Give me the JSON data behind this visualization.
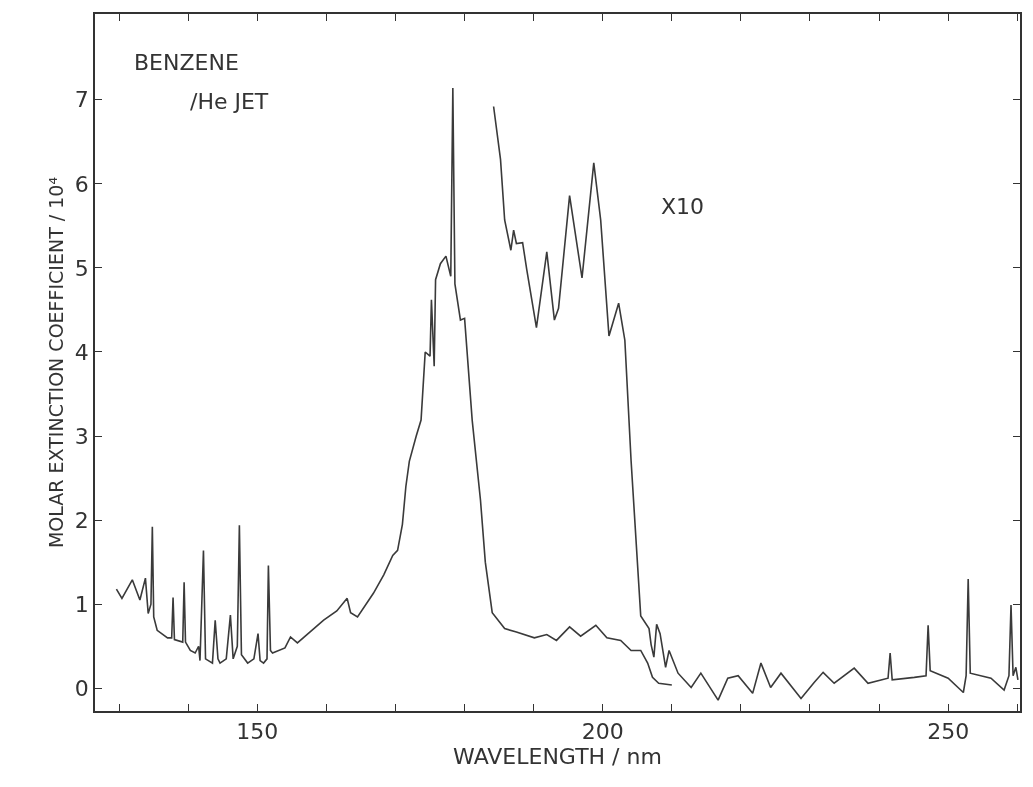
{
  "chart_data": {
    "type": "line",
    "xlabel": "WAVELENGTH / nm",
    "ylabel": "MOLAR EXTINCTION COEFFICIENT / 10⁴",
    "annotations": [
      "BENZENE",
      "/He JET"
    ],
    "xlim": [
      126.5,
      260.4
    ],
    "xticks": [
      {
        "value": 130,
        "label": null
      },
      {
        "value": 140,
        "label": null
      },
      150,
      {
        "value": 160,
        "label": null
      },
      {
        "value": 170,
        "label": null
      },
      {
        "value": 180,
        "label": null
      },
      {
        "value": 190,
        "label": null
      },
      200,
      {
        "value": 210,
        "label": null
      },
      {
        "value": 220,
        "label": null
      },
      {
        "value": 230,
        "label": null
      },
      {
        "value": 240,
        "label": null
      },
      250,
      {
        "value": 260,
        "label": null
      }
    ],
    "ylim": [
      -0.27,
      8.02
    ],
    "yticks": [
      0,
      1,
      2,
      3,
      4,
      5,
      6,
      7
    ],
    "legend": false,
    "marker": "none",
    "line_style": "solid",
    "series": [
      {
        "color": "#3a3a3a",
        "x": [
          129.6,
          130.4,
          131.9,
          133.0,
          133.8,
          134.2,
          134.6,
          134.8,
          135.0,
          135.5,
          137.0,
          137.6,
          137.8,
          138.0,
          139.2,
          139.4,
          139.6,
          140.3,
          141.0,
          141.5,
          141.7,
          142.2,
          142.5,
          143.5,
          143.9,
          144.3,
          144.6,
          145.5,
          146.1,
          146.5,
          147.1,
          147.4,
          147.7,
          148.6,
          149.5,
          150.1,
          150.4,
          150.9,
          151.4,
          151.6,
          151.9,
          152.2,
          154.0,
          154.8,
          155.8,
          159.6,
          161.5,
          163.0,
          163.5,
          164.5,
          166.8,
          168.3,
          169.6,
          170.3,
          171.0,
          171.5,
          172.0,
          173.0,
          173.7,
          174.3,
          175.0,
          175.2,
          175.6,
          175.8,
          176.5,
          177.3,
          178.0,
          178.3,
          178.6,
          179.4,
          180.0,
          181.1,
          182.3,
          183.0,
          184.0,
          185.8,
          187.5,
          190.1,
          191.9,
          193.3,
          195.2,
          196.8,
          199.0,
          200.6,
          202.6,
          204.1,
          205.5,
          206.5,
          207.2,
          208.1,
          210.0
        ],
        "values": [
          1.18,
          1.07,
          1.29,
          1.05,
          1.31,
          0.89,
          1.0,
          1.92,
          0.85,
          0.69,
          0.6,
          0.6,
          1.08,
          0.58,
          0.55,
          1.26,
          0.55,
          0.45,
          0.42,
          0.5,
          0.33,
          1.64,
          0.35,
          0.3,
          0.81,
          0.35,
          0.3,
          0.35,
          0.87,
          0.35,
          0.5,
          1.94,
          0.4,
          0.3,
          0.35,
          0.65,
          0.33,
          0.3,
          0.35,
          1.46,
          0.45,
          0.42,
          0.48,
          0.61,
          0.54,
          0.81,
          0.92,
          1.07,
          0.9,
          0.85,
          1.13,
          1.35,
          1.58,
          1.64,
          1.95,
          2.4,
          2.7,
          3.0,
          3.19,
          4.0,
          3.95,
          4.62,
          3.83,
          4.86,
          5.05,
          5.14,
          4.9,
          7.14,
          4.81,
          4.38,
          4.4,
          3.19,
          2.24,
          1.5,
          0.9,
          0.71,
          0.67,
          0.6,
          0.64,
          0.57,
          0.73,
          0.62,
          0.75,
          0.6,
          0.57,
          0.45,
          0.45,
          0.3,
          0.13,
          0.06,
          0.04
        ]
      },
      {
        "name": "X10",
        "color": "#3a3a3a",
        "x": [
          184.2,
          185.2,
          185.8,
          186.7,
          187.1,
          187.5,
          188.4,
          189.0,
          190.4,
          191.9,
          193.0,
          193.6,
          195.2,
          197.0,
          198.7,
          199.7,
          200.9,
          202.3,
          203.2,
          204.1,
          205.5,
          206.7,
          207.0,
          207.4,
          207.8,
          208.3,
          209.1,
          209.6,
          210.9,
          212.8,
          214.2,
          216.7,
          218.1,
          219.6,
          221.7,
          222.9,
          224.3,
          225.8,
          228.7,
          230.6,
          231.9,
          233.5,
          236.4,
          238.4,
          241.3,
          241.6,
          241.9,
          245.1,
          246.8,
          247.1,
          247.4,
          250.0,
          252.2,
          252.6,
          252.9,
          253.2,
          256.2,
          258.1,
          258.8,
          259.1,
          259.4,
          259.8,
          260.1
        ],
        "values": [
          6.92,
          6.29,
          5.57,
          5.21,
          5.45,
          5.29,
          5.3,
          4.98,
          4.29,
          5.19,
          4.38,
          4.52,
          5.86,
          4.88,
          6.25,
          5.57,
          4.19,
          4.58,
          4.14,
          2.71,
          0.86,
          0.71,
          0.52,
          0.37,
          0.76,
          0.65,
          0.25,
          0.45,
          0.18,
          0.01,
          0.18,
          -0.14,
          0.12,
          0.15,
          -0.06,
          0.3,
          0.01,
          0.18,
          -0.12,
          0.07,
          0.19,
          0.06,
          0.24,
          0.06,
          0.12,
          0.42,
          0.1,
          0.13,
          0.15,
          0.75,
          0.21,
          0.12,
          -0.05,
          0.15,
          1.3,
          0.18,
          0.12,
          -0.02,
          0.15,
          0.99,
          0.15,
          0.25,
          0.1
        ]
      }
    ]
  }
}
